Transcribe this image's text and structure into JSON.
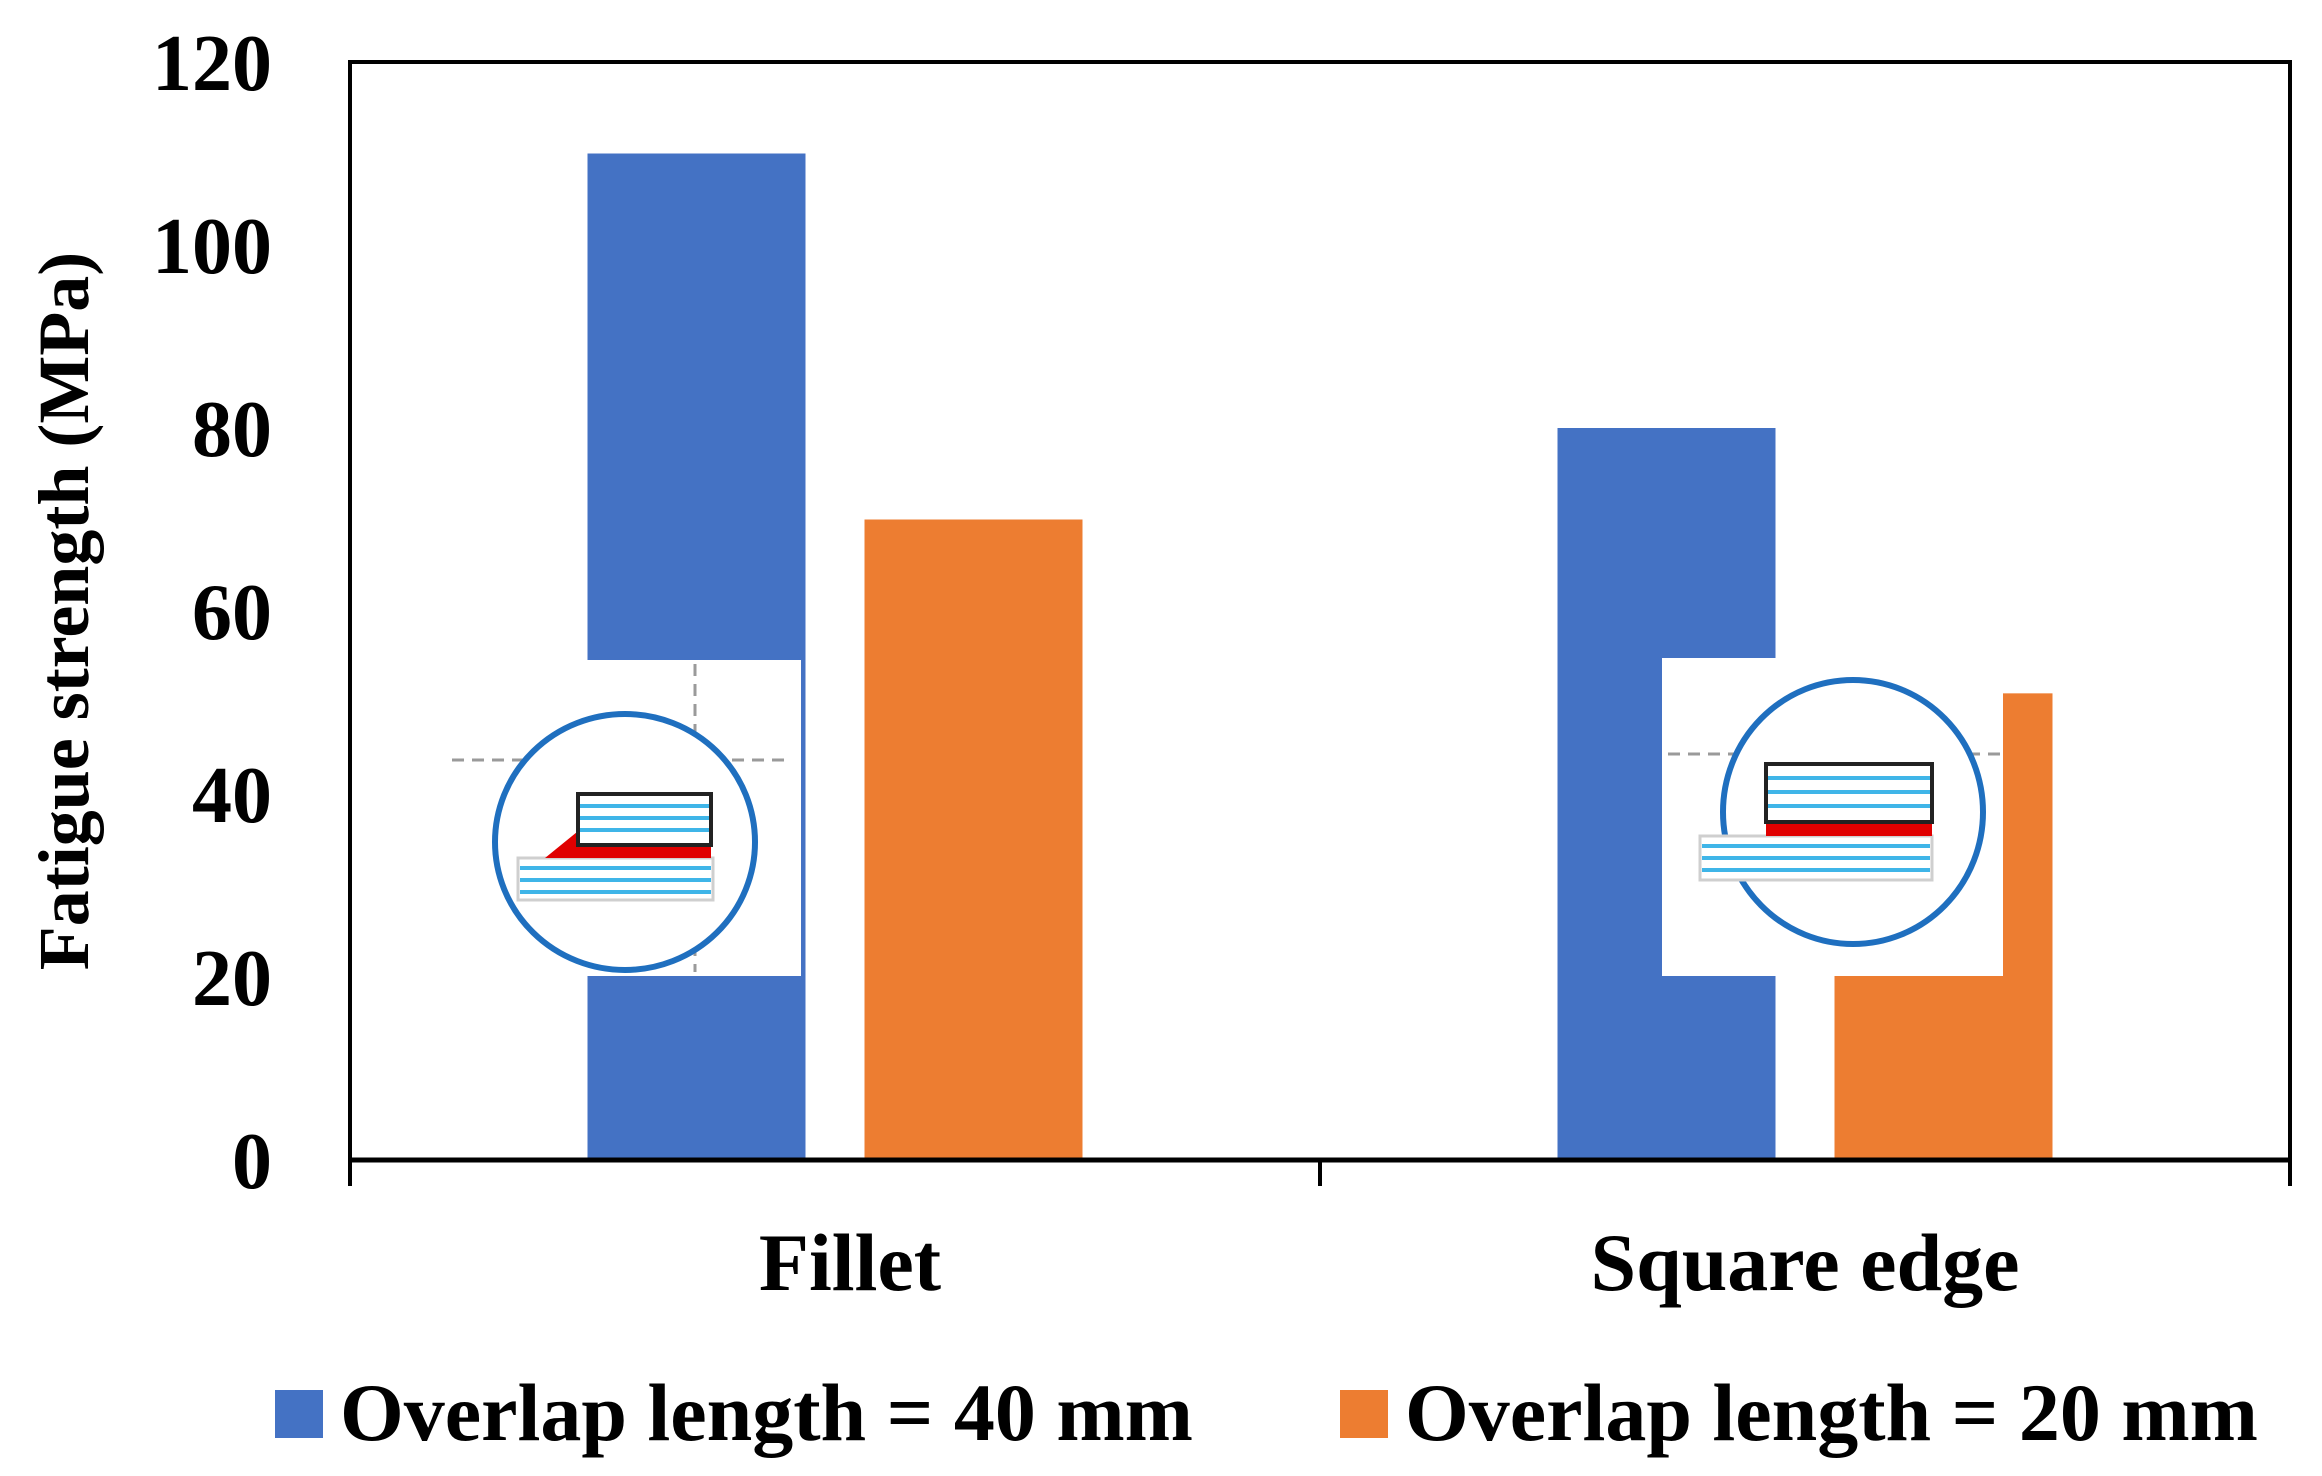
{
  "chart_data": {
    "type": "bar",
    "categories": [
      "Fillet",
      "Square edge"
    ],
    "series": [
      {
        "name": "Overlap length = 40 mm",
        "values": [
          110,
          80
        ],
        "color": "#4472C4"
      },
      {
        "name": "Overlap length = 20 mm",
        "values": [
          70,
          51
        ],
        "color": "#ED7D31"
      }
    ],
    "ylabel": "Fatigue strength (MPa)",
    "xlabel": "",
    "ylim": [
      0,
      120
    ],
    "yticks": [
      0,
      20,
      40,
      60,
      80,
      100,
      120
    ],
    "grid": false,
    "legend_position": "bottom",
    "insets": [
      {
        "category": "Fillet",
        "icon": "fillet-joint-inset",
        "adhesive_color": "#E00000",
        "ring_color": "#1F6FBF",
        "layer_color": "#3FB5E8"
      },
      {
        "category": "Square edge",
        "icon": "square-edge-joint-inset",
        "adhesive_color": "#E00000",
        "ring_color": "#1F6FBF",
        "layer_color": "#3FB5E8"
      }
    ]
  }
}
